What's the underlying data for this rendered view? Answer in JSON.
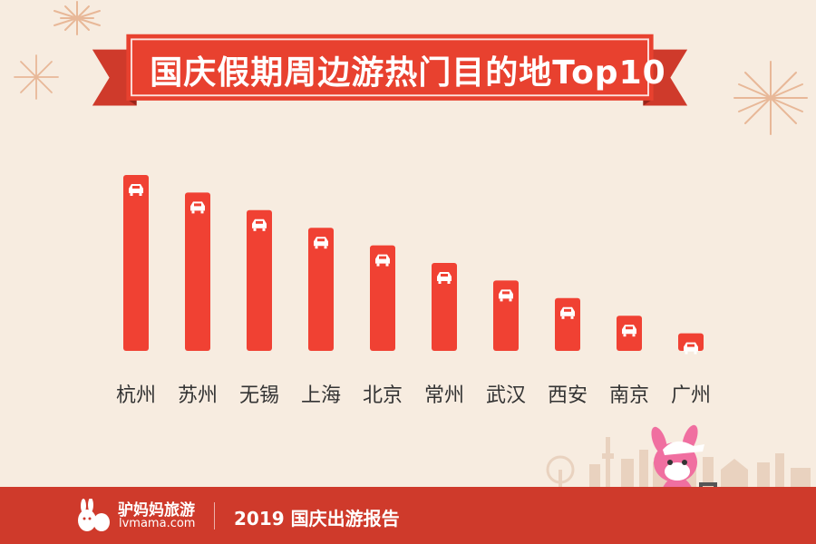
{
  "title": "国庆假期周边游热门目的地Top10",
  "colors": {
    "background": "#f7ece0",
    "accent": "#cf3a2b",
    "bar": "#f04133",
    "text": "#333333",
    "firework": "#e8b898"
  },
  "chart_data": {
    "type": "bar",
    "title": "国庆假期周边游热门目的地Top10",
    "categories": [
      "杭州",
      "苏州",
      "无锡",
      "上海",
      "北京",
      "常州",
      "武汉",
      "西安",
      "南京",
      "广州"
    ],
    "values": [
      10,
      9,
      8,
      7,
      6,
      5,
      4,
      3,
      2,
      1
    ],
    "xlabel": "",
    "ylabel": "",
    "ylim": [
      0,
      10
    ],
    "grid": false,
    "legend": "none",
    "bar_icon": "car-icon"
  },
  "footer": {
    "brand_name": "驴妈妈旅游",
    "brand_url": "lvmama.com",
    "report_title": "2019 国庆出游报告"
  }
}
